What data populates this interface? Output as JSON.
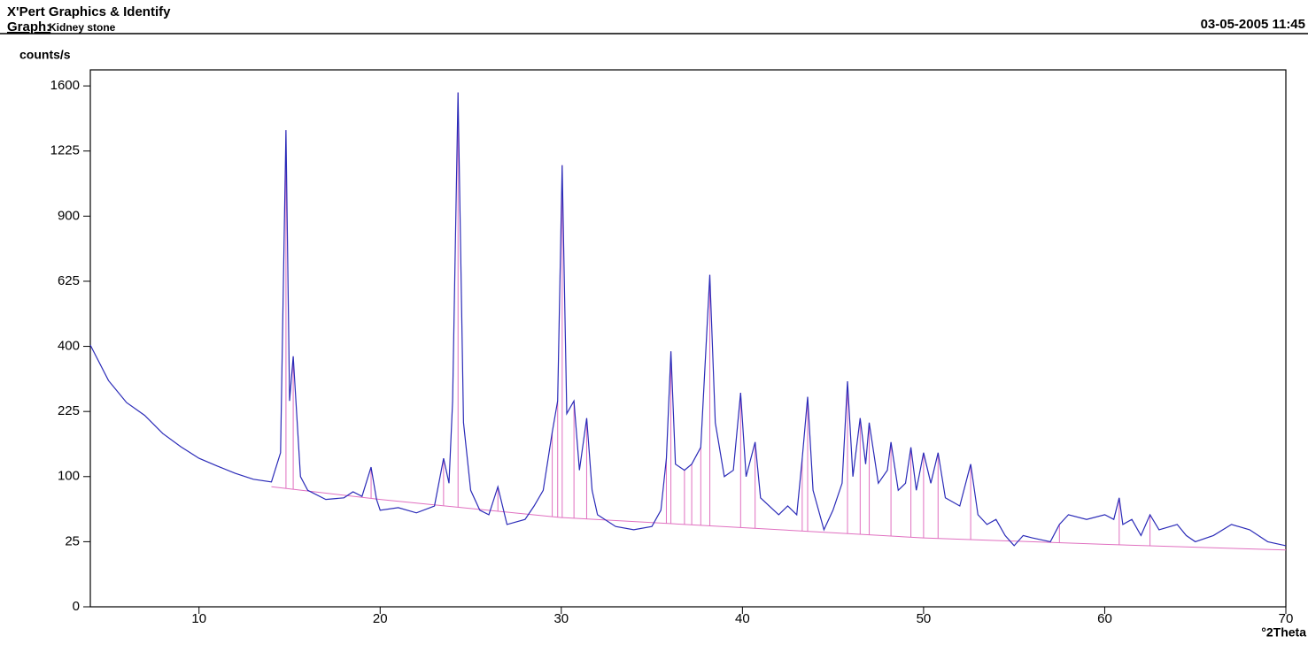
{
  "chart_data": {
    "type": "line",
    "app_title": "X'Pert Graphics & Identify",
    "graph_label": "Graph:",
    "graph_name": "Kidney stone",
    "date": "03-05-2005 11:45",
    "ylabel": "counts/s",
    "xlabel": "°2Theta",
    "yscale": "sqrt",
    "xlim": [
      4,
      70
    ],
    "ylim": [
      0,
      1700
    ],
    "xticks": [
      10,
      20,
      30,
      40,
      50,
      60,
      70
    ],
    "yticks": [
      0,
      25,
      100,
      225,
      400,
      625,
      900,
      1225,
      1600
    ],
    "series": [
      {
        "style": "line",
        "color": "#2b2bb8",
        "x": [
          4,
          5,
          6,
          7,
          8,
          9,
          10,
          11,
          12,
          13,
          14,
          14.5,
          14.8,
          15.0,
          15.2,
          15.6,
          16,
          17,
          18,
          18.5,
          19,
          19.5,
          19.8,
          20,
          21,
          22,
          23,
          23.5,
          23.8,
          24.0,
          24.3,
          24.6,
          25,
          25.5,
          26,
          26.5,
          27,
          28,
          28.5,
          29,
          29.5,
          29.8,
          30.05,
          30.3,
          30.7,
          31,
          31.4,
          31.7,
          32,
          33,
          34,
          35,
          35.5,
          35.8,
          36.05,
          36.3,
          36.8,
          37.2,
          37.7,
          38.2,
          38.5,
          39,
          39.5,
          39.9,
          40.2,
          40.7,
          41,
          42,
          42.5,
          43,
          43.3,
          43.6,
          43.9,
          44.5,
          45,
          45.5,
          45.8,
          46.1,
          46.5,
          46.8,
          47,
          47.5,
          48,
          48.2,
          48.6,
          49,
          49.3,
          49.6,
          50,
          50.4,
          50.8,
          51.2,
          52,
          52.6,
          53,
          53.5,
          54,
          54.5,
          55,
          55.5,
          56,
          57,
          57.5,
          58,
          59,
          60,
          60.5,
          60.8,
          61,
          61.5,
          62,
          62.5,
          63,
          64,
          64.5,
          65,
          66,
          67,
          68,
          69,
          70
        ],
        "values": [
          404,
          302,
          246,
          216,
          177,
          151,
          130,
          117,
          105,
          96,
          92,
          140,
          1340,
          250,
          370,
          100,
          80,
          68,
          70,
          78,
          72,
          115,
          68,
          55,
          58,
          52,
          60,
          130,
          90,
          250,
          1560,
          200,
          80,
          55,
          50,
          85,
          40,
          45,
          60,
          80,
          180,
          250,
          1150,
          220,
          250,
          110,
          210,
          80,
          50,
          38,
          35,
          38,
          55,
          130,
          385,
          120,
          110,
          120,
          150,
          650,
          200,
          100,
          110,
          270,
          100,
          160,
          70,
          50,
          60,
          50,
          130,
          260,
          80,
          35,
          55,
          90,
          300,
          100,
          210,
          120,
          200,
          90,
          110,
          160,
          80,
          90,
          150,
          80,
          140,
          90,
          140,
          70,
          60,
          120,
          50,
          40,
          45,
          30,
          22,
          30,
          28,
          25,
          40,
          50,
          45,
          50,
          45,
          70,
          40,
          45,
          30,
          50,
          35,
          40,
          30,
          25,
          30,
          40,
          35,
          25,
          22
        ]
      },
      {
        "style": "baseline",
        "color": "#e070c0",
        "x": [
          14,
          20,
          30,
          40,
          50,
          60,
          70
        ],
        "values": [
          85,
          68,
          47,
          37,
          28,
          23,
          19
        ]
      },
      {
        "style": "sticks",
        "color": "#e070c0",
        "x": [
          14.8,
          15.2,
          19.5,
          23.5,
          24.3,
          26.5,
          29.5,
          29.8,
          30.05,
          30.7,
          31.4,
          35.8,
          36.05,
          36.8,
          37.2,
          37.7,
          38.2,
          39.9,
          40.7,
          43.3,
          43.6,
          45.8,
          46.5,
          47,
          48.2,
          49.3,
          50,
          50.8,
          52.6,
          57.5,
          60.8,
          62.5
        ],
        "values": [
          1340,
          370,
          115,
          130,
          1560,
          85,
          180,
          250,
          1150,
          250,
          210,
          130,
          385,
          110,
          120,
          150,
          650,
          270,
          160,
          130,
          260,
          300,
          210,
          200,
          160,
          150,
          140,
          140,
          120,
          40,
          70,
          50
        ]
      }
    ]
  }
}
